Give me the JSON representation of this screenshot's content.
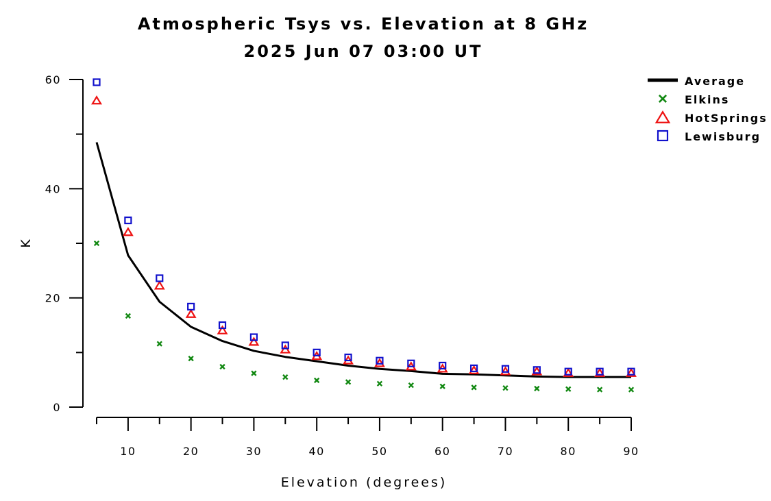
{
  "chart_data": {
    "type": "scatter",
    "title": "Atmospheric Tsys vs. Elevation at 8 GHz",
    "subtitle": "2025 Jun 07 03:00 UT",
    "xlabel": "Elevation (degrees)",
    "ylabel": "K",
    "xlim": [
      5,
      90
    ],
    "ylim": [
      0,
      60
    ],
    "x_ticks": [
      10,
      20,
      30,
      40,
      50,
      60,
      70,
      80,
      90
    ],
    "y_ticks": [
      0,
      20,
      40,
      60
    ],
    "grid": false,
    "legend_position": "top-right",
    "x": [
      5,
      10,
      15,
      20,
      25,
      30,
      35,
      40,
      45,
      50,
      55,
      60,
      65,
      70,
      75,
      80,
      85,
      90
    ],
    "series": [
      {
        "name": "Average",
        "kind": "line",
        "color": "#000000",
        "values": [
          48.5,
          27.8,
          19.3,
          14.7,
          12.1,
          10.3,
          9.2,
          8.4,
          7.6,
          7.0,
          6.6,
          6.1,
          6.0,
          5.8,
          5.6,
          5.5,
          5.5,
          5.5
        ]
      },
      {
        "name": "Elkins",
        "kind": "marker",
        "marker": "x",
        "color": "#118811",
        "values": [
          30.0,
          16.7,
          11.6,
          8.9,
          7.4,
          6.2,
          5.5,
          4.9,
          4.6,
          4.3,
          4.0,
          3.8,
          3.6,
          3.5,
          3.4,
          3.3,
          3.2,
          3.2
        ]
      },
      {
        "name": "HotSprings",
        "kind": "marker",
        "marker": "triangle",
        "color": "#ee1111",
        "values": [
          56.2,
          32.1,
          22.3,
          17.1,
          14.1,
          12.0,
          10.6,
          9.4,
          8.6,
          8.1,
          7.5,
          7.1,
          6.8,
          6.6,
          6.6,
          6.3,
          6.3,
          6.3
        ]
      },
      {
        "name": "Lewisburg",
        "kind": "marker",
        "marker": "square",
        "color": "#1111cc",
        "values": [
          59.5,
          34.2,
          23.6,
          18.4,
          15.0,
          12.8,
          11.3,
          10.0,
          9.1,
          8.5,
          8.0,
          7.6,
          7.1,
          7.0,
          6.8,
          6.5,
          6.5,
          6.5
        ]
      }
    ]
  }
}
